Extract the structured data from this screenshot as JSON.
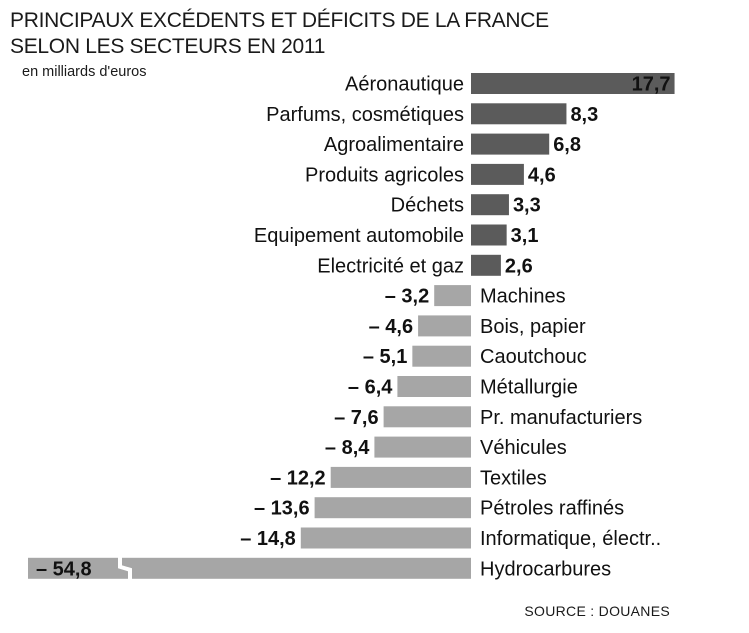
{
  "header": {
    "title_line1": "PRINCIPAUX EXCÉDENTS ET DÉFICITS DE LA FRANCE",
    "title_line2": "SELON LES SECTEURS EN 2011",
    "unit": "en milliards d'euros"
  },
  "footer": {
    "source": "SOURCE : DOUANES"
  },
  "colors": {
    "surplus": "#5b5b5b",
    "deficit": "#a6a6a6"
  },
  "chart_data": {
    "type": "bar",
    "orientation": "horizontal",
    "title": "PRINCIPAUX EXCÉDENTS ET DÉFICITS DE LA FRANCE SELON LES SECTEURS EN 2011",
    "unit": "en milliards d'euros",
    "axis_break_on": "Hydrocarbures",
    "categories": [
      "Aéronautique",
      "Parfums, cosmétiques",
      "Agroalimentaire",
      "Produits agricoles",
      "Déchets",
      "Equipement automobile",
      "Electricité et gaz",
      "Machines",
      "Bois, papier",
      "Caoutchouc",
      "Métallurgie",
      "Pr. manufacturiers",
      "Véhicules",
      "Textiles",
      "Pétroles raffinés",
      "Informatique, électr..",
      "Hydrocarbures"
    ],
    "values": [
      17.7,
      8.3,
      6.8,
      4.6,
      3.3,
      3.1,
      2.6,
      -3.2,
      -4.6,
      -5.1,
      -6.4,
      -7.6,
      -8.4,
      -12.2,
      -13.6,
      -14.8,
      -54.8
    ],
    "value_labels": [
      "17,7",
      "8,3",
      "6,8",
      "4,6",
      "3,3",
      "3,1",
      "2,6",
      "– 3,2",
      "– 4,6",
      "– 5,1",
      "– 6,4",
      "– 7,6",
      "– 8,4",
      "– 12,2",
      "– 13,6",
      "– 14,8",
      "– 54,8"
    ]
  }
}
